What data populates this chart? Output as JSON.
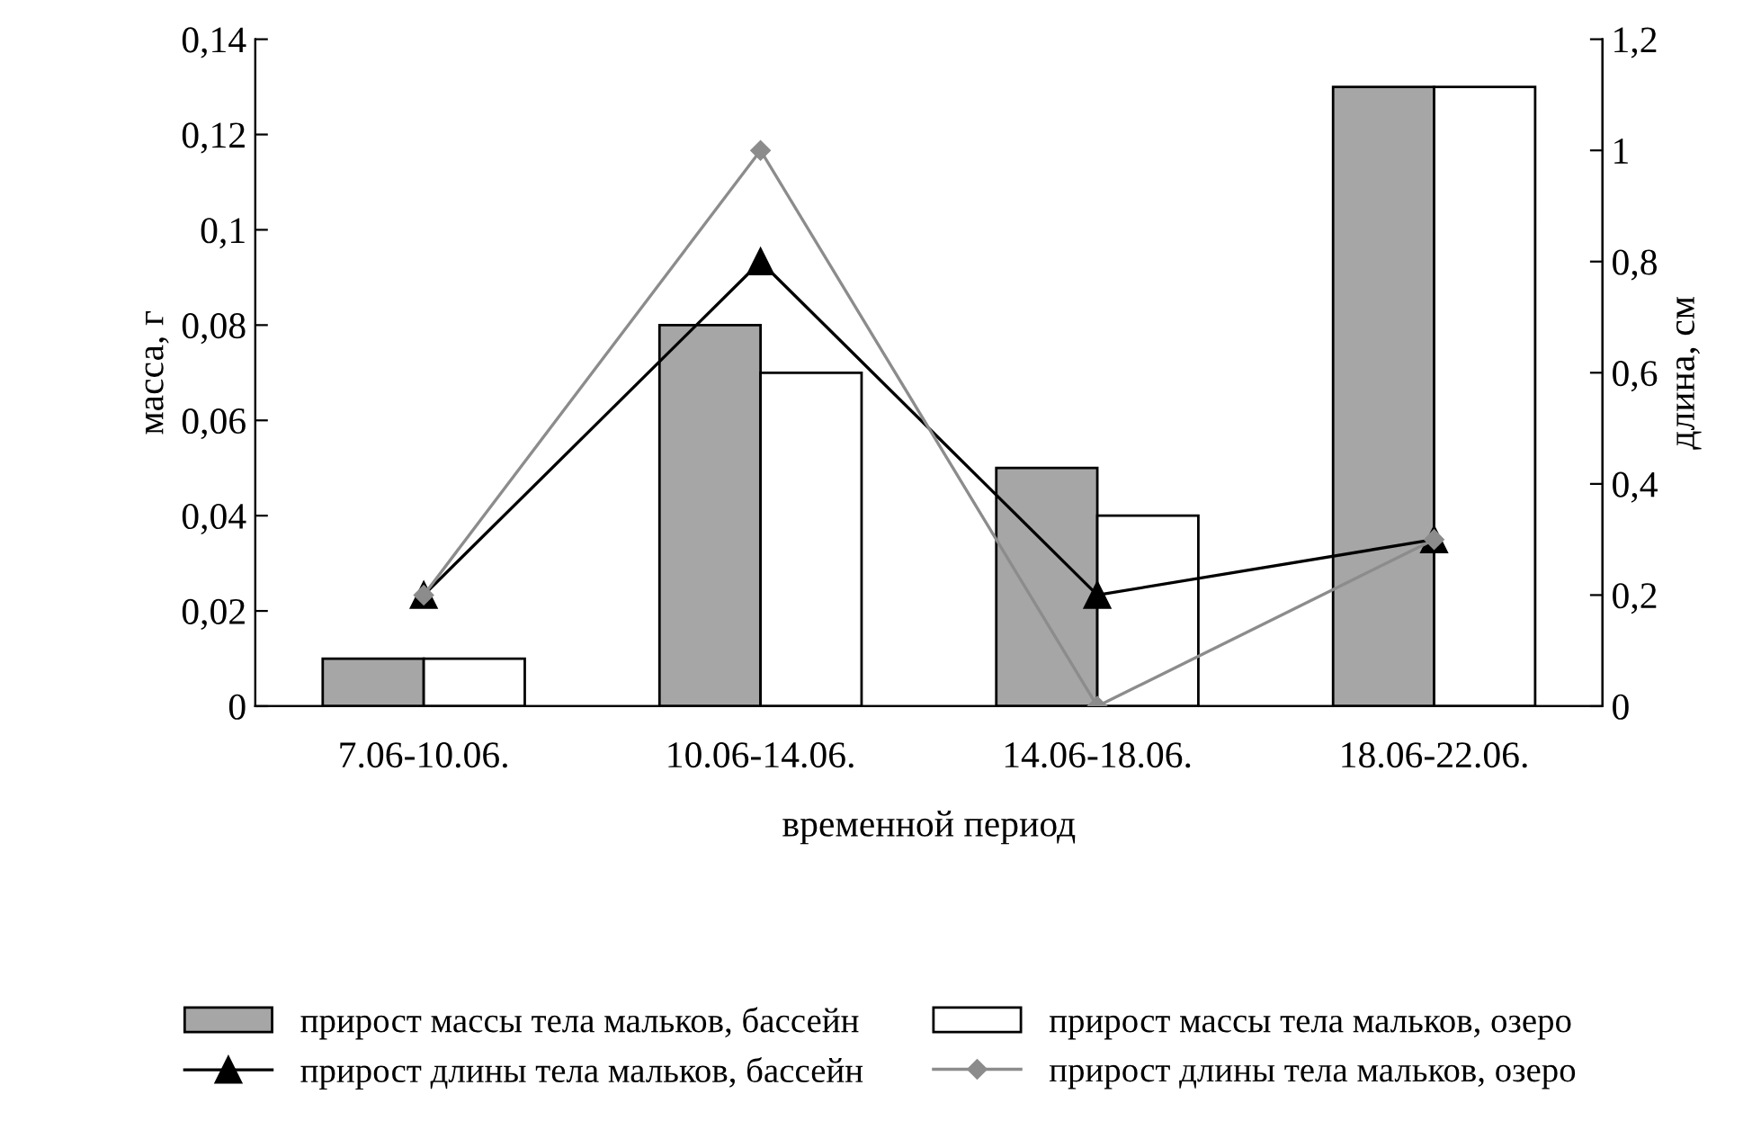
{
  "chart_data": {
    "type": "bar",
    "xlabel": "временной период",
    "ylabel": "масса, г",
    "y2label": "длина, см",
    "categories": [
      "7.06-10.06.",
      "10.06-14.06.",
      "14.06-18.06.",
      "18.06-22.06."
    ],
    "series": [
      {
        "name": "прирост массы тела мальков, бассейн",
        "color": "#a6a6a6",
        "values": [
          0.01,
          0.08,
          0.05,
          0.13
        ]
      },
      {
        "name": "прирост массы тела мальков, озеро",
        "color": "#ffffff",
        "values": [
          0.01,
          0.07,
          0.04,
          0.13
        ]
      },
      {
        "name": "прирост длины тела мальков, бассейн",
        "type": "line",
        "axis": "y2",
        "color": "#000000",
        "marker": "triangle",
        "values": [
          0.2,
          0.8,
          0.2,
          0.3
        ]
      },
      {
        "name": "прирост длины тела мальков, озеро",
        "type": "line",
        "axis": "y2",
        "color": "#8c8c8c",
        "marker": "diamond",
        "values": [
          0.2,
          1.0,
          0.0,
          0.3
        ]
      }
    ],
    "ylim": [
      0,
      0.14
    ],
    "yticks": [
      {
        "value": 0,
        "label": "0"
      },
      {
        "value": 0.02,
        "label": "0,02"
      },
      {
        "value": 0.04,
        "label": "0,04"
      },
      {
        "value": 0.06,
        "label": "0,06"
      },
      {
        "value": 0.08,
        "label": "0,08"
      },
      {
        "value": 0.1,
        "label": "0,1"
      },
      {
        "value": 0.12,
        "label": "0,12"
      },
      {
        "value": 0.14,
        "label": "0,14"
      }
    ],
    "y2lim": [
      0,
      1.2
    ],
    "y2ticks": [
      {
        "value": 0,
        "label": "0"
      },
      {
        "value": 0.2,
        "label": "0,2"
      },
      {
        "value": 0.4,
        "label": "0,4"
      },
      {
        "value": 0.6,
        "label": "0,6"
      },
      {
        "value": 0.8,
        "label": "0,8"
      },
      {
        "value": 1,
        "label": "1"
      },
      {
        "value": 1.2,
        "label": "1,2"
      }
    ],
    "legend": "bottom",
    "grid": false
  }
}
